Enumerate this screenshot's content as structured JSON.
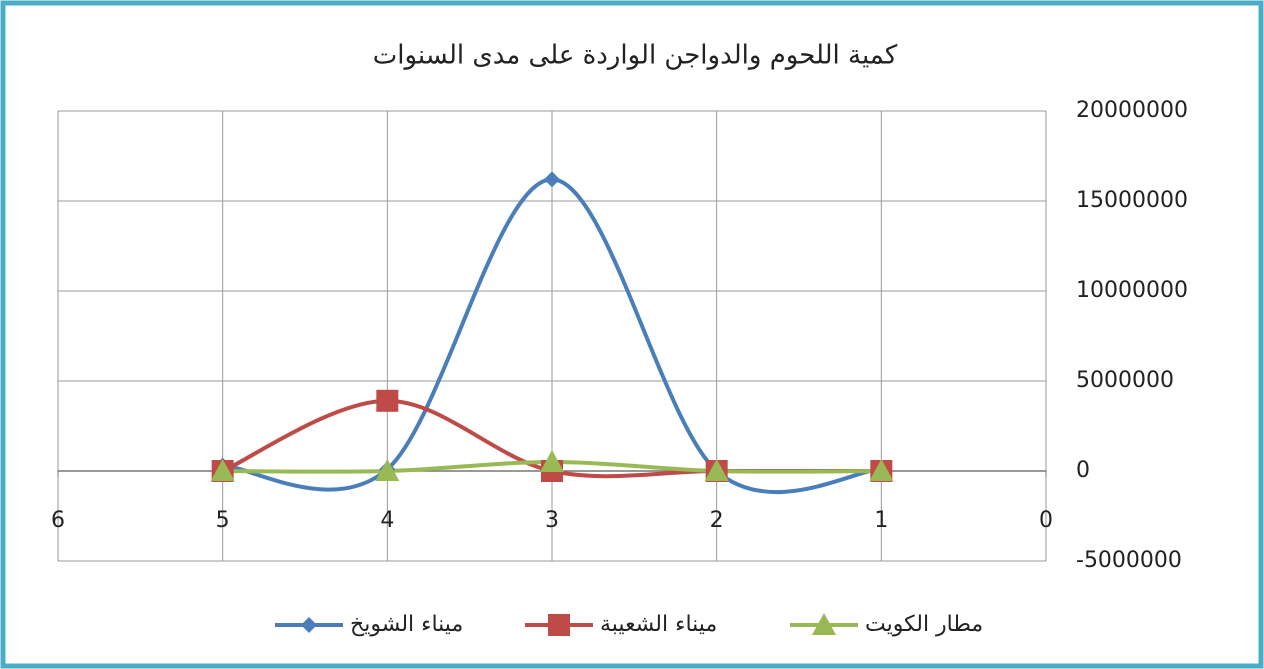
{
  "chart_data": {
    "type": "line",
    "title": "كمية اللحوم والدواجن الواردة على مدى السنوات",
    "x": [
      5,
      4,
      3,
      2,
      1
    ],
    "series": [
      {
        "name": "ميناء الشويخ",
        "color": "#4a7ebb",
        "marker": "diamond",
        "values": [
          300000,
          100000,
          16200000,
          0,
          100000
        ]
      },
      {
        "name": "ميناء الشعيبة",
        "color": "#be4b48",
        "marker": "square",
        "values": [
          0,
          3900000,
          0,
          0,
          0
        ]
      },
      {
        "name": "مطار الكويت",
        "color": "#98b954",
        "marker": "triangle",
        "values": [
          0,
          0,
          500000,
          0,
          0
        ]
      }
    ],
    "xlim": [
      6,
      0
    ],
    "xticks": [
      0,
      1,
      2,
      3,
      4,
      5,
      6
    ],
    "ylim": [
      -5000000,
      20000000
    ],
    "yticks": [
      -5000000,
      0,
      5000000,
      10000000,
      15000000,
      20000000
    ],
    "y_axis_side": "right",
    "smooth": true,
    "grid": true,
    "legend": "bottom"
  }
}
